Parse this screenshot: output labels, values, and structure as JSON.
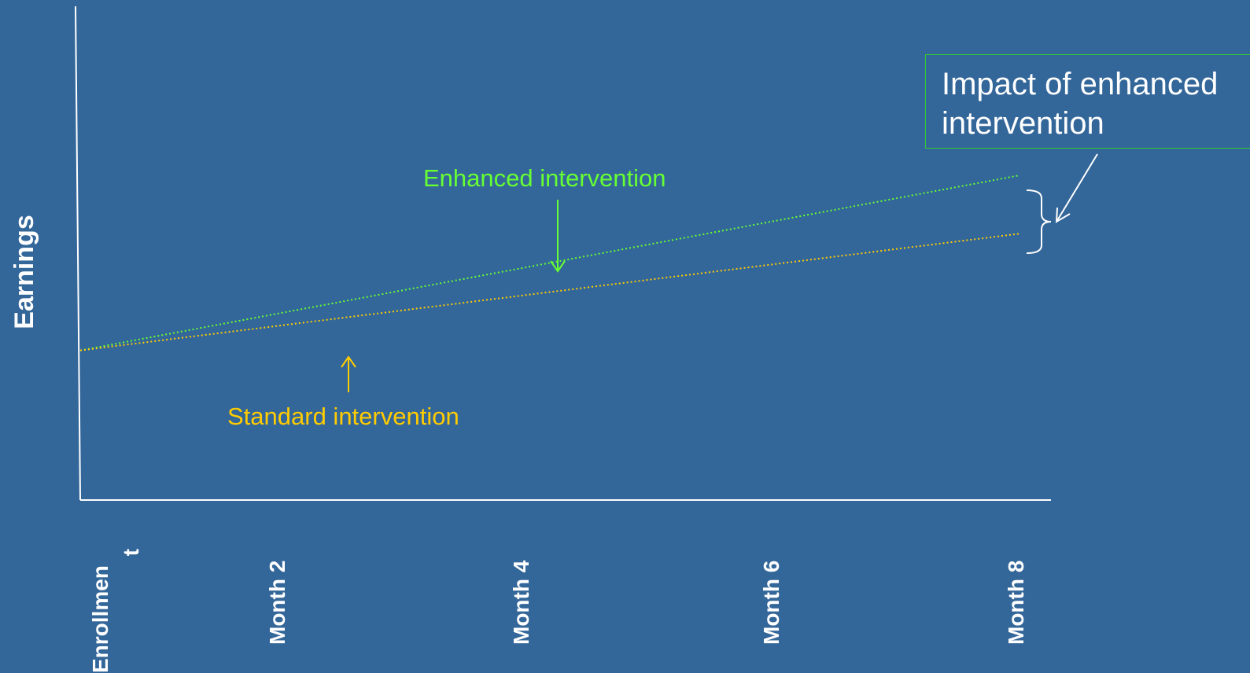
{
  "chart_data": {
    "type": "line",
    "ylabel": "Earnings",
    "xlabel": "",
    "categories": [
      "Enrollmen t",
      "Month 2",
      "Month 4",
      "Month 6",
      "Month 8"
    ],
    "series": [
      {
        "name": "Enhanced intervention",
        "color": "#66ff33",
        "style": "dotted",
        "start": 1,
        "end": 2.17
      },
      {
        "name": "Standard intervention",
        "color": "#ffcc00",
        "style": "dotted",
        "start": 1,
        "end": 1.78
      }
    ],
    "ylim": [
      0,
      3.3
    ],
    "grid": false,
    "annotations": [
      {
        "id": "impact",
        "text": "Impact of enhanced intervention",
        "border_color": "#33cc33",
        "points_to": "gap at Month 8"
      }
    ]
  },
  "labels": {
    "y_axis": "Earnings",
    "ticks": [
      "Enrollmen",
      "t",
      "Month 2",
      "Month 4",
      "Month 6",
      "Month 8"
    ],
    "enhanced": "Enhanced intervention",
    "standard": "Standard intervention",
    "impact_line1": "Impact of enhanced",
    "impact_line2": "intervention"
  }
}
